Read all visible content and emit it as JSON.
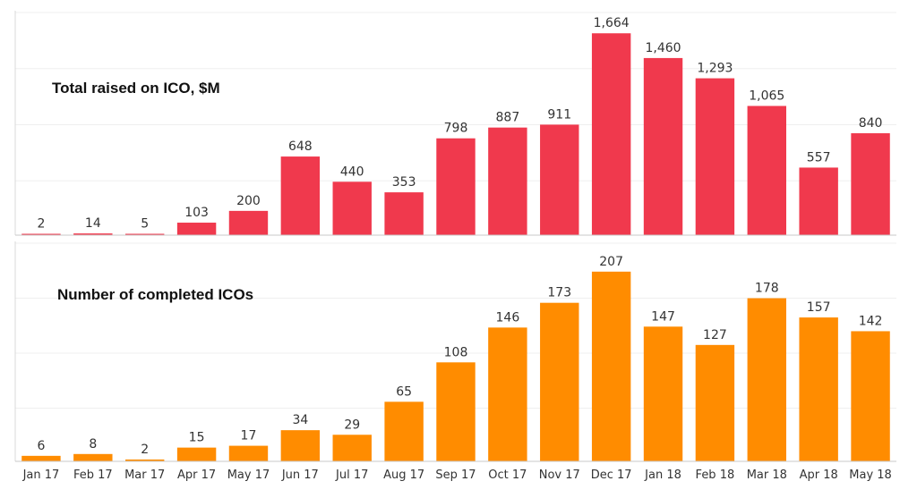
{
  "chart_data": [
    {
      "type": "bar",
      "title": "Total raised on ICO, $M",
      "categories": [
        "Jan 17",
        "Feb 17",
        "Mar 17",
        "Apr 17",
        "May 17",
        "Jun 17",
        "Jul 17",
        "Aug 17",
        "Sep 17",
        "Oct 17",
        "Nov 17",
        "Dec 17",
        "Jan 18",
        "Feb 18",
        "Mar 18",
        "Apr 18",
        "May 18"
      ],
      "values": [
        2,
        14,
        5,
        103,
        200,
        648,
        440,
        353,
        798,
        887,
        911,
        1664,
        1460,
        1293,
        1065,
        557,
        840
      ],
      "value_labels": [
        "2",
        "14",
        "5",
        "103",
        "200",
        "648",
        "440",
        "353",
        "798",
        "887",
        "911",
        "1,664",
        "1,460",
        "1,293",
        "1,065",
        "557",
        "840"
      ],
      "ylim": [
        0,
        1850
      ],
      "grid": true,
      "color": "#f0394d"
    },
    {
      "type": "bar",
      "title": "Number of completed ICOs",
      "categories": [
        "Jan 17",
        "Feb 17",
        "Mar 17",
        "Apr 17",
        "May 17",
        "Jun 17",
        "Jul 17",
        "Aug 17",
        "Sep 17",
        "Oct 17",
        "Nov 17",
        "Dec 17",
        "Jan 18",
        "Feb 18",
        "Mar 18",
        "Apr 18",
        "May 18"
      ],
      "values": [
        6,
        8,
        2,
        15,
        17,
        34,
        29,
        65,
        108,
        146,
        173,
        207,
        147,
        127,
        178,
        157,
        142
      ],
      "value_labels": [
        "6",
        "8",
        "2",
        "15",
        "17",
        "34",
        "29",
        "65",
        "108",
        "146",
        "173",
        "207",
        "147",
        "127",
        "178",
        "157",
        "142"
      ],
      "ylim": [
        0,
        240
      ],
      "grid": true,
      "color": "#ff8c00"
    }
  ]
}
